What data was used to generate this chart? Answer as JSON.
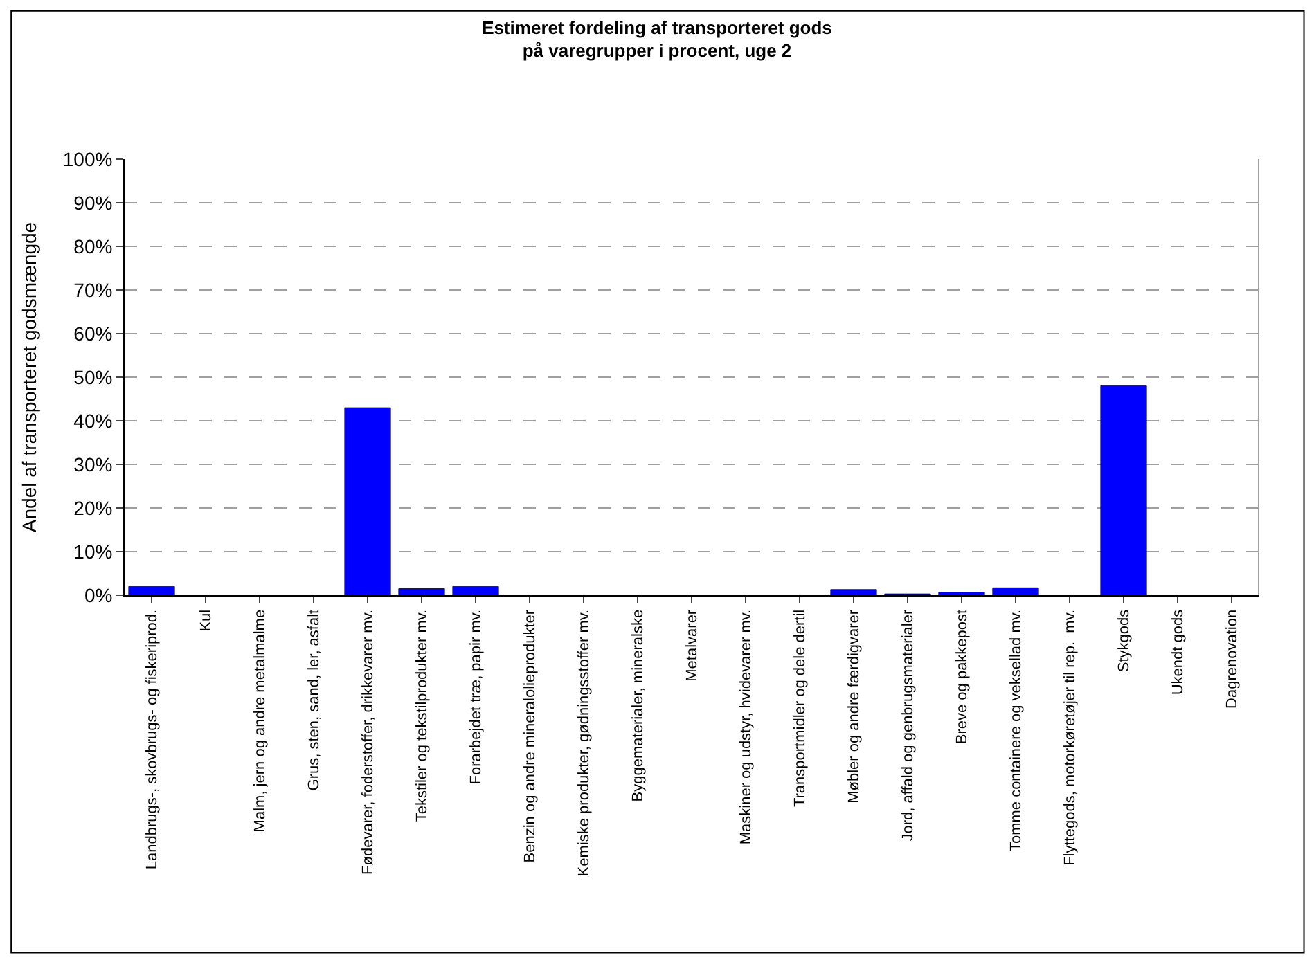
{
  "chart_data": {
    "type": "bar",
    "title": "Estimeret fordeling af transporteret gods\npå varegrupper i procent, uge 2",
    "ylabel": "Andel af transporteret godsmængde",
    "categories": [
      "Landbrugs-, skovbrugs- og fiskeriprod.",
      "Kul",
      "Malm, jern og andre metalmalme",
      "Grus, sten, sand, ler, asfalt",
      "Fødevarer, foderstoffer, drikkevarer mv.",
      "Tekstiler og tekstilprodukter mv.",
      "Forarbejdet træ, papir mv.",
      "Benzin og andre mineralolieprodukter",
      "Kemiske produkter, gødningsstoffer mv.",
      "Byggematerialer, mineralske",
      "Metalvarer",
      "Maskiner og udstyr, hvidevarer mv.",
      "Transportmidler og dele dertil",
      "Møbler og andre færdigvarer",
      "Jord, affald og genbrugsmaterialer",
      "Breve og pakkepost",
      "Tomme containere og veksellad mv.",
      "Flyttegods, motorkøretøjer til rep.  mv.",
      "Stykgods",
      "Ukendt gods",
      "Dagrenovation"
    ],
    "values": [
      2.0,
      0,
      0,
      0,
      43,
      1.5,
      2.0,
      0,
      0,
      0,
      0,
      0,
      0,
      1.3,
      0.3,
      0.7,
      1.7,
      0,
      48,
      0,
      0
    ],
    "color": "#0000ff",
    "ylim": [
      0,
      100
    ],
    "yticks": [
      {
        "value": 0,
        "label": "0%"
      },
      {
        "value": 10,
        "label": "10%"
      },
      {
        "value": 20,
        "label": "20%"
      },
      {
        "value": 30,
        "label": "30%"
      },
      {
        "value": 40,
        "label": "40%"
      },
      {
        "value": 50,
        "label": "50%"
      },
      {
        "value": 60,
        "label": "60%"
      },
      {
        "value": 70,
        "label": "70%"
      },
      {
        "value": 80,
        "label": "80%"
      },
      {
        "value": 90,
        "label": "90%"
      },
      {
        "value": 100,
        "label": "100%"
      }
    ],
    "grid": "y",
    "legend": false
  }
}
